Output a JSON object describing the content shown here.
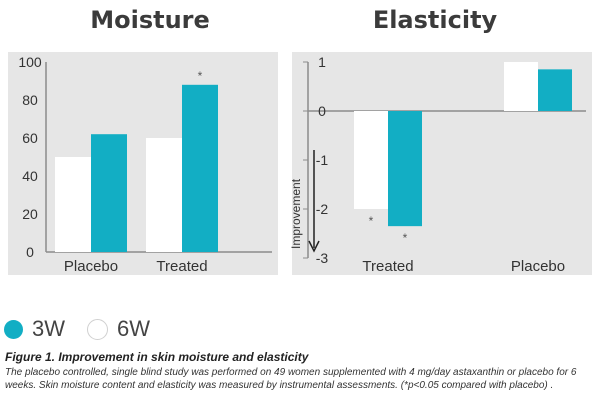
{
  "colors": {
    "teal": "#12aec4",
    "white_bar": "#ffffff",
    "panel_bg": "#e6e6e6",
    "axis": "#8c8c8c"
  },
  "chart_data": [
    {
      "type": "bar",
      "title": "Moisture",
      "categories": [
        "Placebo",
        "Treated"
      ],
      "series": [
        {
          "name": "6W",
          "values": [
            50,
            60
          ]
        },
        {
          "name": "3W",
          "values": [
            62,
            88
          ]
        }
      ],
      "ylim": [
        0,
        100
      ],
      "yticks": [
        "100",
        "80",
        "60",
        "40",
        "20",
        "0"
      ],
      "grid": false,
      "annotations": [
        {
          "text": "*",
          "category": "Treated",
          "series": "3W"
        }
      ]
    },
    {
      "type": "bar",
      "title": "Elasticity",
      "categories": [
        "Treated",
        "Placebo"
      ],
      "series": [
        {
          "name": "6W",
          "values": [
            -2.0,
            1.0
          ]
        },
        {
          "name": "3W",
          "values": [
            -2.35,
            0.85
          ]
        }
      ],
      "ylim": [
        -3,
        1
      ],
      "yticks": [
        "1",
        "0",
        "-1",
        "-2",
        "-3"
      ],
      "grid": false,
      "arrow_label": "Improvement",
      "annotations": [
        {
          "text": "*",
          "category": "Treated",
          "series": "6W"
        },
        {
          "text": "*",
          "category": "Treated",
          "series": "3W"
        }
      ]
    }
  ],
  "legend": {
    "items": [
      {
        "label": "3W",
        "color": "#12aec4"
      },
      {
        "label": "6W",
        "color": "#ffffff"
      }
    ]
  },
  "caption": {
    "title": "Figure 1. Improvement in skin moisture and elasticity",
    "body": "The placebo controlled, single blind study was performed on 49 women supplemented with 4 mg/day astaxanthin or placebo for 6 weeks. Skin moisture content and elasticity was measured by instrumental assessments. (*p<0.05 compared with placebo) ."
  }
}
